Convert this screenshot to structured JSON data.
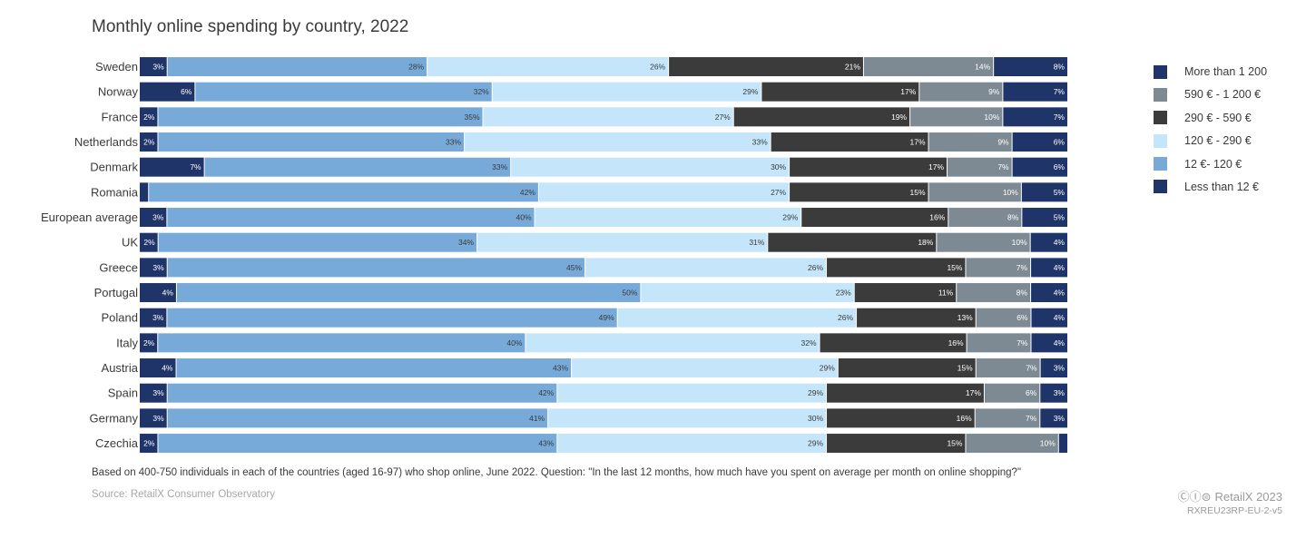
{
  "chart_data": {
    "type": "bar",
    "orientation": "horizontal",
    "stacked": true,
    "title": "Monthly online spending by country, 2022",
    "categories": [
      "Sweden",
      "Norway",
      "France",
      "Netherlands",
      "Denmark",
      "Romania",
      "European average",
      "UK",
      "Greece",
      "Portugal",
      "Poland",
      "Italy",
      "Austria",
      "Spain",
      "Germany",
      "Czechia"
    ],
    "series": [
      {
        "name": "Less than 12 €",
        "color": "#1f3469",
        "values": [
          3,
          6,
          2,
          2,
          7,
          1,
          3,
          2,
          3,
          4,
          3,
          2,
          4,
          3,
          3,
          2
        ],
        "labels": [
          "3%",
          "6%",
          "2%",
          "2%",
          "7%",
          "",
          "3%",
          "2%",
          "3%",
          "4%",
          "3%",
          "2%",
          "4%",
          "3%",
          "3%",
          "2%"
        ]
      },
      {
        "name": "12 €- 120 €",
        "color": "#77aad8",
        "values": [
          28,
          32,
          35,
          33,
          33,
          42,
          40,
          34,
          45,
          50,
          49,
          40,
          43,
          42,
          41,
          43
        ],
        "labels": [
          "28%",
          "32%",
          "35%",
          "33%",
          "33%",
          "42%",
          "40%",
          "34%",
          "45%",
          "50%",
          "49%",
          "40%",
          "43%",
          "42%",
          "41%",
          "43%"
        ]
      },
      {
        "name": "120 € - 290 €",
        "color": "#c5e6fa",
        "values": [
          26,
          29,
          27,
          33,
          30,
          27,
          29,
          31,
          26,
          23,
          26,
          32,
          29,
          29,
          30,
          29
        ],
        "labels": [
          "26%",
          "29%",
          "27%",
          "33%",
          "30%",
          "27%",
          "29%",
          "31%",
          "26%",
          "23%",
          "26%",
          "32%",
          "29%",
          "29%",
          "30%",
          "29%"
        ]
      },
      {
        "name": "290 € - 590 €",
        "color": "#3b3b3b",
        "values": [
          21,
          17,
          19,
          17,
          17,
          15,
          16,
          18,
          15,
          11,
          13,
          16,
          15,
          17,
          16,
          15
        ],
        "labels": [
          "21%",
          "17%",
          "19%",
          "17%",
          "17%",
          "15%",
          "16%",
          "18%",
          "15%",
          "11%",
          "13%",
          "16%",
          "15%",
          "17%",
          "16%",
          "15%"
        ]
      },
      {
        "name": "590 € - 1 200 €",
        "color": "#7e8a93",
        "values": [
          14,
          9,
          10,
          9,
          7,
          10,
          8,
          10,
          7,
          8,
          6,
          7,
          7,
          6,
          7,
          10
        ],
        "labels": [
          "14%",
          "9%",
          "10%",
          "9%",
          "7%",
          "10%",
          "8%",
          "10%",
          "7%",
          "8%",
          "6%",
          "7%",
          "7%",
          "6%",
          "7%",
          "10%"
        ]
      },
      {
        "name": "More than 1 200",
        "color": "#1f3469",
        "values": [
          8,
          7,
          7,
          6,
          6,
          5,
          5,
          4,
          4,
          4,
          4,
          4,
          3,
          3,
          3,
          1
        ],
        "labels": [
          "8%",
          "7%",
          "7%",
          "6%",
          "6%",
          "5%",
          "5%",
          "4%",
          "4%",
          "4%",
          "4%",
          "4%",
          "3%",
          "3%",
          "3%",
          ""
        ]
      }
    ],
    "legend_order": [
      "More than 1 200",
      "590 € - 1 200 €",
      "290 € - 590 €",
      "120 € - 290 €",
      "12 €- 120 €",
      "Less than 12 €"
    ],
    "legend_colors": {
      "More than 1 200": "#1f3469",
      "590 € - 1 200 €": "#7e8a93",
      "290 € - 590 €": "#3b3b3b",
      "120 € - 290 €": "#c5e6fa",
      "12 €- 120 €": "#77aad8",
      "Less than 12 €": "#1f3469"
    },
    "legend_position": "right"
  },
  "footnote": "Based on 400-750 individuals in each of the countries (aged 16-97) who shop online, June 2022. Question: \"In the last 12 months, how much have you spent on average per month on online shopping?\"",
  "source": "Source: RetailX Consumer Observatory",
  "brand": "RetailX 2023",
  "report_code": "RXREU23RP-EU-2-v5"
}
